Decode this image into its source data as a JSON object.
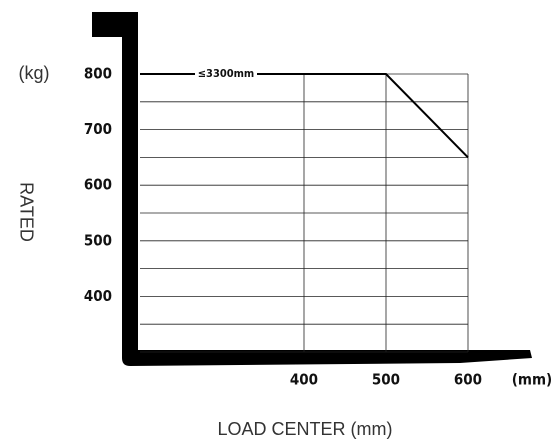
{
  "chart_data": {
    "type": "line",
    "y_unit": "(kg)",
    "y_label": "RATED",
    "x_label": "LOAD CENTER (mm)",
    "x_unit": "(mm)",
    "annotation": "≤3300mm",
    "x": [
      200,
      500,
      600
    ],
    "series": [
      {
        "color": "#000000",
        "values": [
          800,
          800,
          650
        ]
      }
    ],
    "xlim": [
      200,
      600
    ],
    "ylim": [
      300,
      800
    ],
    "xticks": [
      400,
      500,
      600
    ],
    "yticks": [
      400,
      500,
      600,
      700,
      800
    ],
    "ygrid": [
      300,
      350,
      400,
      450,
      500,
      550,
      600,
      650,
      700,
      750,
      800
    ],
    "grid": true
  }
}
